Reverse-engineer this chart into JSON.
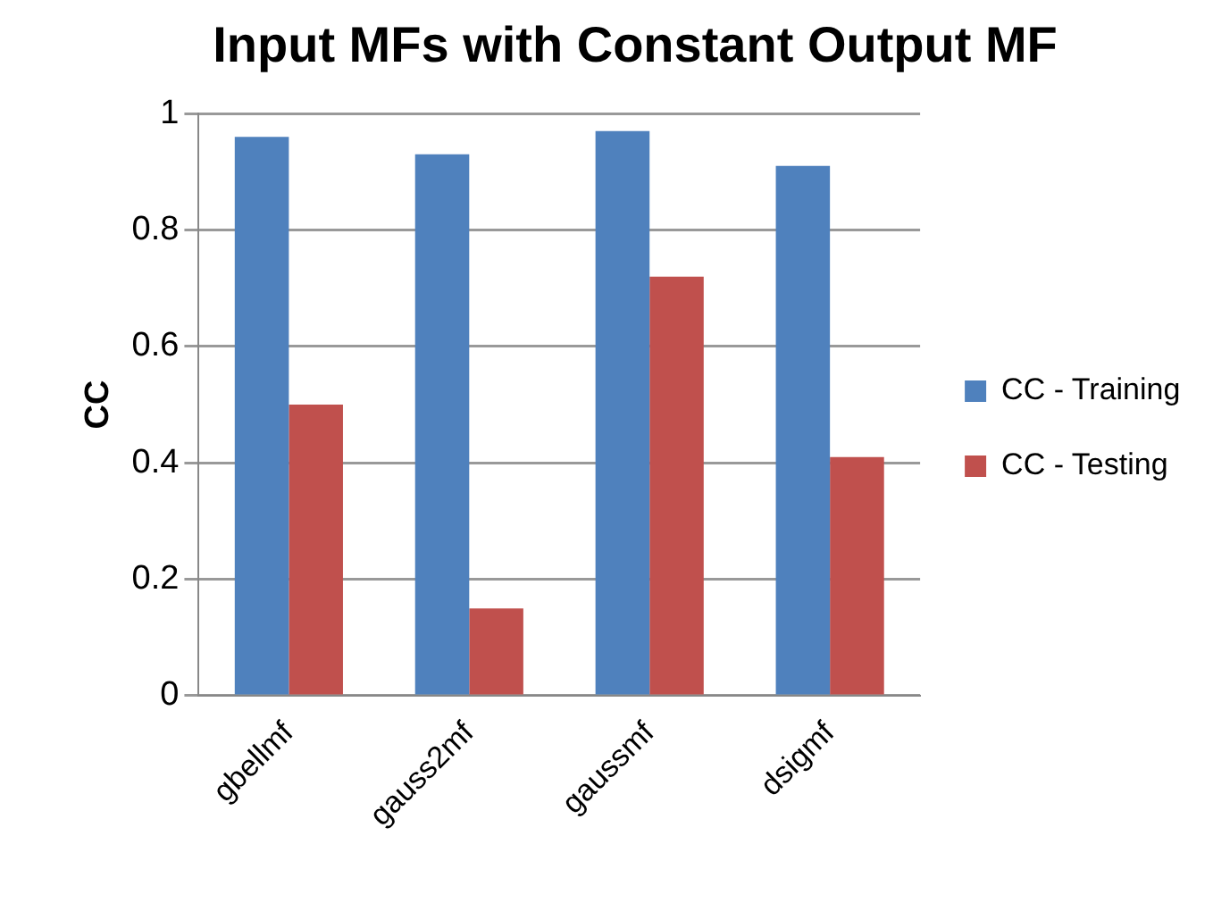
{
  "chart_data": {
    "type": "bar",
    "title": "Input MFs with Constant Output MF",
    "ylabel": "CC",
    "categories": [
      "gbellmf",
      "gauss2mf",
      "gaussmf",
      "dsigmf"
    ],
    "series": [
      {
        "name": "CC - Training",
        "color": "#4f81bd",
        "values": [
          0.96,
          0.93,
          0.97,
          0.91
        ]
      },
      {
        "name": "CC - Testing",
        "color": "#c0504d",
        "values": [
          0.5,
          0.15,
          0.72,
          0.41
        ]
      }
    ],
    "ylim": [
      0,
      1
    ],
    "yticks": [
      0,
      0.2,
      0.4,
      0.6,
      0.8,
      1
    ],
    "grid": "y",
    "legend": "right"
  }
}
